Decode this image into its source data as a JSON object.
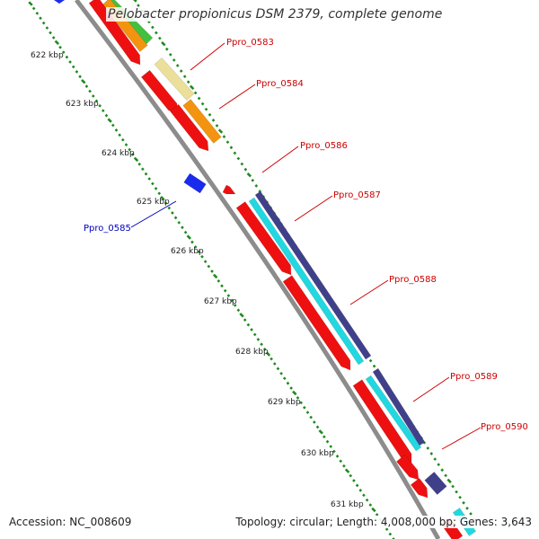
{
  "title": "Pelobacter propionicus DSM 2379, complete genome",
  "footer": {
    "accession": "Accession: NC_008609",
    "stats": "Topology: circular; Length: 4,008,000 bp; Genes: 3,643"
  },
  "colors": {
    "backbone": "#8c8c8c",
    "ticks": "#1e8a1e",
    "cds_red": "#ee1010",
    "label_red": "#cc0000",
    "label_blue": "#0000bb",
    "cyan": "#22d8e0",
    "navy": "#40408a",
    "orange": "#f39410",
    "khaki": "#ebdf9a",
    "green": "#44c040",
    "blue": "#1a2bee"
  },
  "ticks": [
    "622 kbp",
    "623 kbp",
    "624 kbp",
    "625 kbp",
    "626 kbp",
    "627 kbp",
    "628 kbp",
    "629 kbp",
    "630 kbp",
    "631 kbp"
  ],
  "gene_labels": [
    {
      "name": "Ppro_0583",
      "color": "red"
    },
    {
      "name": "Ppro_0584",
      "color": "red"
    },
    {
      "name": "Ppro_0586",
      "color": "red"
    },
    {
      "name": "Ppro_0587",
      "color": "red"
    },
    {
      "name": "Ppro_0588",
      "color": "red"
    },
    {
      "name": "Ppro_0589",
      "color": "red"
    },
    {
      "name": "Ppro_0590",
      "color": "red"
    },
    {
      "name": "Ppro_0585",
      "color": "blue"
    }
  ]
}
